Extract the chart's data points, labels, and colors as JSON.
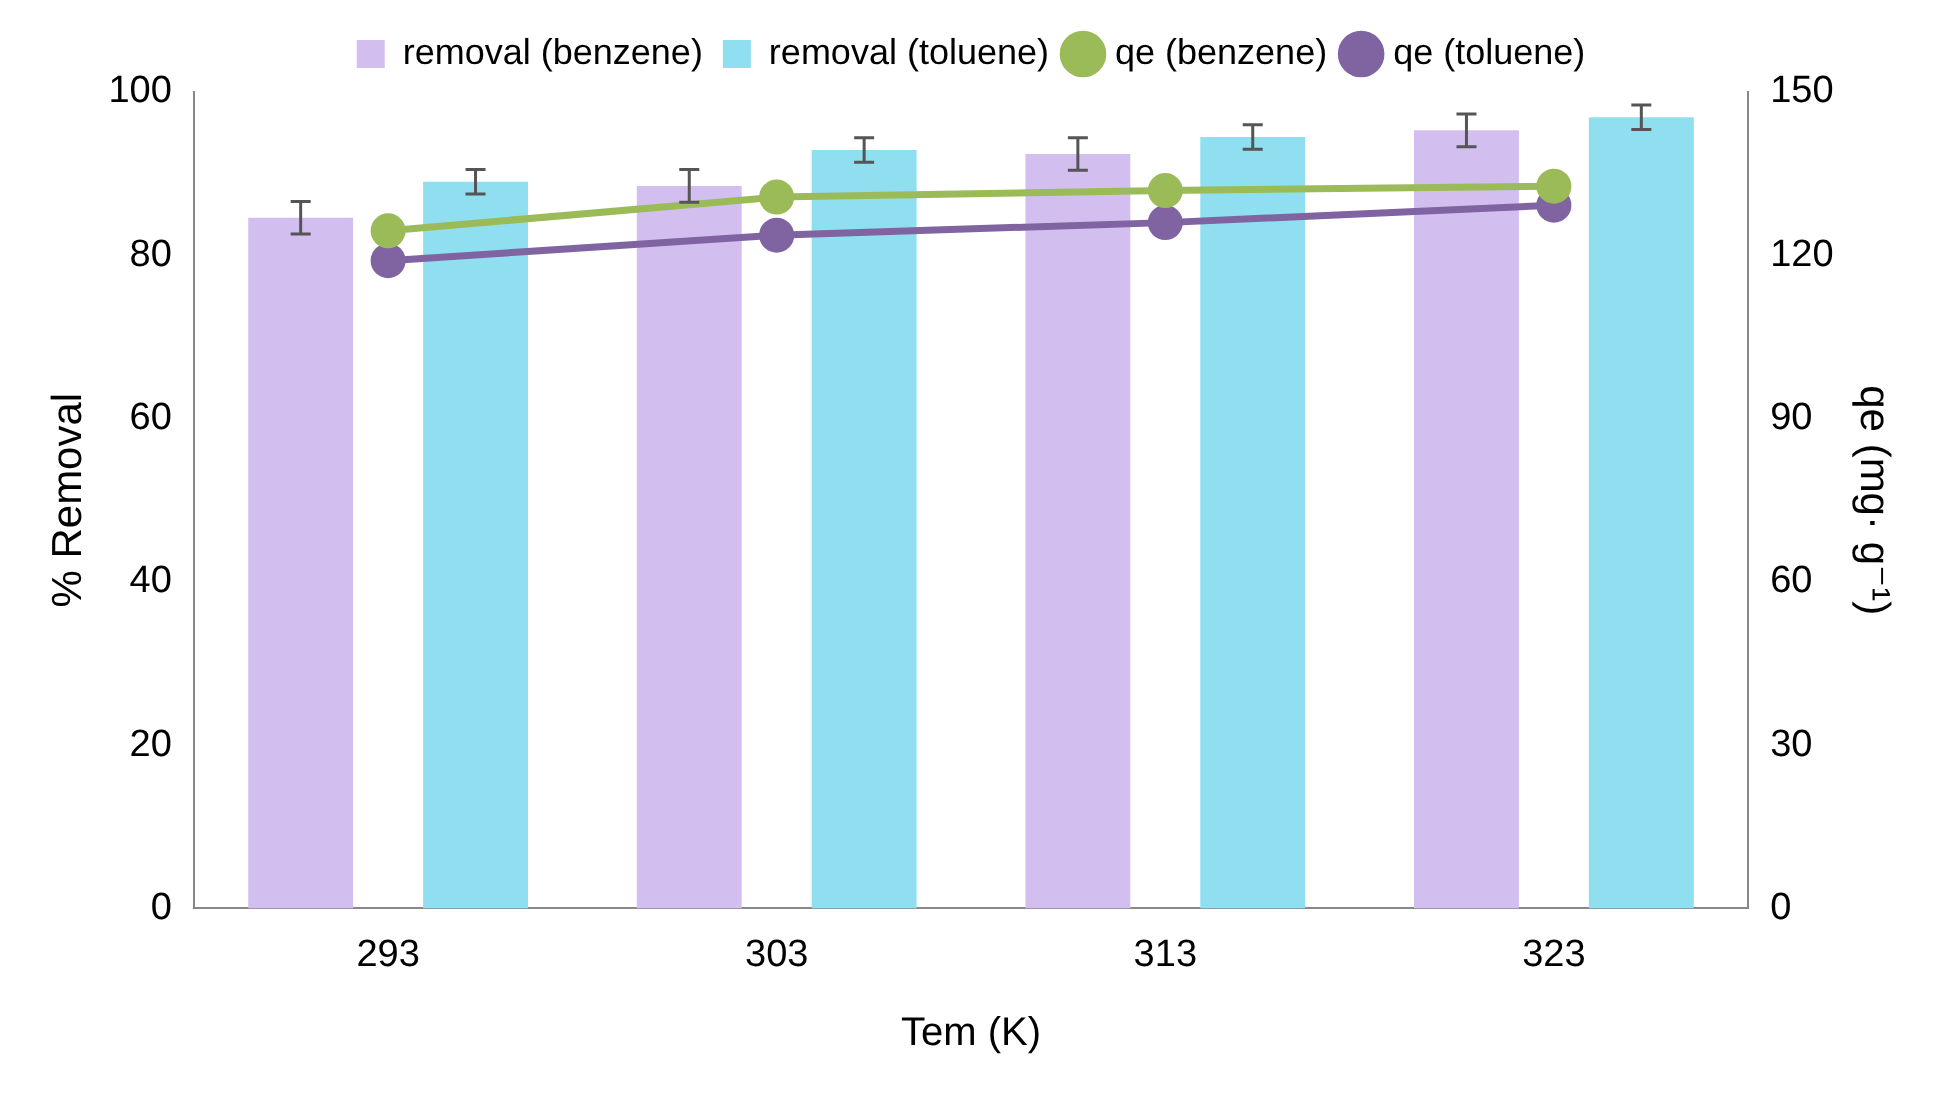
{
  "chart_data": {
    "type": "bar",
    "xlabel": "Tem (K)",
    "ylabel": "% Removal",
    "y2label": "qe (mg· g⁻¹)",
    "categories": [
      "293",
      "303",
      "313",
      "323"
    ],
    "series": [
      {
        "name": "removal (benzene)",
        "color": "#d2bff0",
        "values": [
          84.6,
          88.5,
          92.4,
          95.3
        ],
        "errors": [
          2,
          2,
          2,
          2
        ]
      },
      {
        "name": "removal (toluene)",
        "color": "#8fdff0",
        "values": [
          89,
          92.9,
          94.5,
          96.9
        ],
        "errors": [
          1.5,
          1.5,
          1.5,
          1.5
        ]
      },
      {
        "name": "qe (benzene)",
        "type": "line",
        "axis": "y2",
        "color": "#9bbb59",
        "values": [
          124.5,
          130.7,
          131.9,
          132.7
        ]
      },
      {
        "name": "qe (toluene)",
        "type": "line",
        "axis": "y2",
        "color": "#8064a2",
        "values": [
          119,
          123.7,
          126,
          129.2
        ]
      }
    ],
    "ylim": [
      0,
      100
    ],
    "yticks": [
      0,
      20,
      40,
      60,
      80,
      100
    ],
    "y2lim": [
      0,
      150
    ],
    "y2ticks": [
      0,
      30,
      60,
      90,
      120,
      150
    ],
    "grid": false,
    "legend": "top",
    "marker": "circle",
    "line_style": "solid"
  }
}
